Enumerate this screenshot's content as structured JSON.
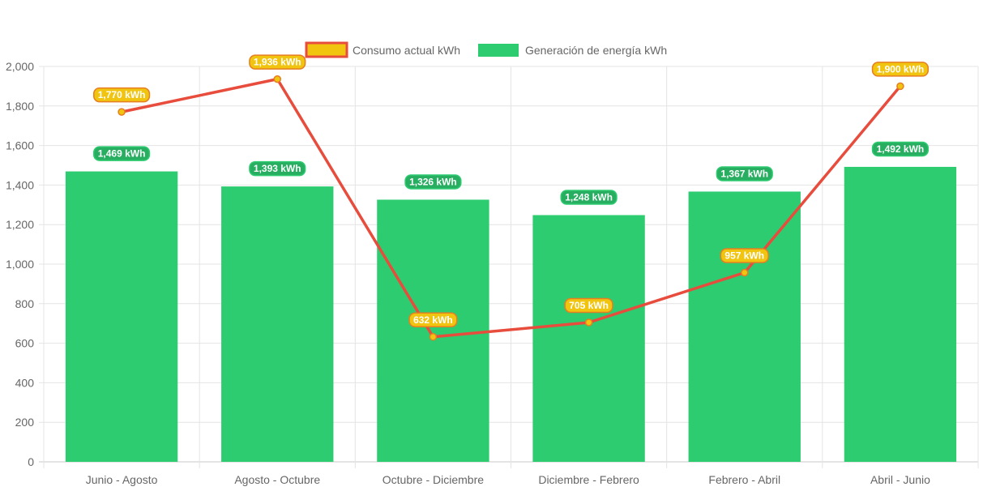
{
  "chart_data": {
    "type": "bar",
    "title": "",
    "xlabel": "",
    "ylabel": "",
    "ylim": [
      0,
      2000
    ],
    "yticks": [
      0,
      200,
      400,
      600,
      800,
      1000,
      1200,
      1400,
      1600,
      1800,
      2000
    ],
    "ytick_labels": [
      "0",
      "200",
      "400",
      "600",
      "800",
      "1,000",
      "1,200",
      "1,400",
      "1,600",
      "1,800",
      "2,000"
    ],
    "grid": true,
    "legend_position": "top-center",
    "categories": [
      "Junio - Agosto",
      "Agosto - Octubre",
      "Octubre - Diciembre",
      "Diciembre - Febrero",
      "Febrero - Abril",
      "Abril - Junio"
    ],
    "series": [
      {
        "name": "Consumo actual kWh",
        "type": "line",
        "values": [
          1770,
          1936,
          632,
          705,
          957,
          1900
        ],
        "labels": [
          "1,770 kWh",
          "1,936 kWh",
          "632 kWh",
          "705 kWh",
          "957 kWh",
          "1,900 kWh"
        ],
        "color": "#e74c3c",
        "fill_color": "#f1c40f",
        "label_bg": "#f1c40f",
        "label_border": "#e67e22"
      },
      {
        "name": "Generación de energía kWh",
        "type": "bar",
        "values": [
          1469,
          1393,
          1326,
          1248,
          1367,
          1492
        ],
        "labels": [
          "1,469 kWh",
          "1,393 kWh",
          "1,326 kWh",
          "1,248 kWh",
          "1,367 kWh",
          "1,492 kWh"
        ],
        "color": "#2ecc71",
        "label_bg": "#27ae60",
        "label_border": "#2ecc71"
      }
    ]
  }
}
